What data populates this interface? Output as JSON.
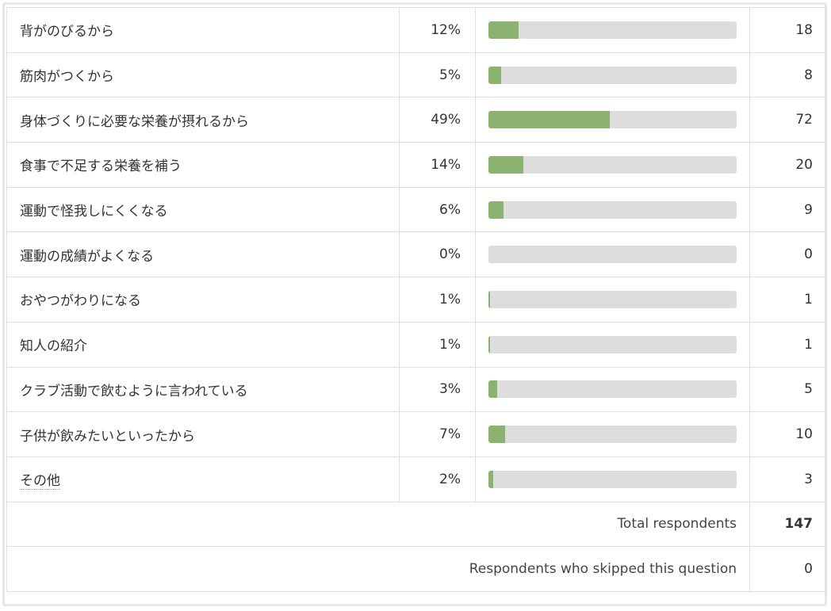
{
  "rows": [
    {
      "label": "背がのびるから",
      "percent": "12%",
      "fraction": 0.12,
      "count": "18"
    },
    {
      "label": "筋肉がつくから",
      "percent": "5%",
      "fraction": 0.05,
      "count": "8"
    },
    {
      "label": "身体づくりに必要な栄養が摂れるから",
      "percent": "49%",
      "fraction": 0.49,
      "count": "72"
    },
    {
      "label": "食事で不足する栄養を補う",
      "percent": "14%",
      "fraction": 0.14,
      "count": "20"
    },
    {
      "label": "運動で怪我しにくくなる",
      "percent": "6%",
      "fraction": 0.06,
      "count": "9"
    },
    {
      "label": "運動の成績がよくなる",
      "percent": "0%",
      "fraction": 0.0,
      "count": "0"
    },
    {
      "label": "おやつがわりになる",
      "percent": "1%",
      "fraction": 0.007,
      "count": "1"
    },
    {
      "label": "知人の紹介",
      "percent": "1%",
      "fraction": 0.007,
      "count": "1"
    },
    {
      "label": "クラブ活動で飲むように言われている",
      "percent": "3%",
      "fraction": 0.034,
      "count": "5"
    },
    {
      "label": "子供が飲みたいといったから",
      "percent": "7%",
      "fraction": 0.068,
      "count": "10"
    },
    {
      "label": "その他",
      "percent": "2%",
      "fraction": 0.02,
      "count": "3"
    }
  ],
  "summary": {
    "total_label": "Total respondents",
    "total_value": "147",
    "skipped_label": "Respondents who skipped this question",
    "skipped_value": "0"
  },
  "colors": {
    "bar_fill": "#8bb26e",
    "bar_track": "#dddddd",
    "border": "#dedede"
  }
}
